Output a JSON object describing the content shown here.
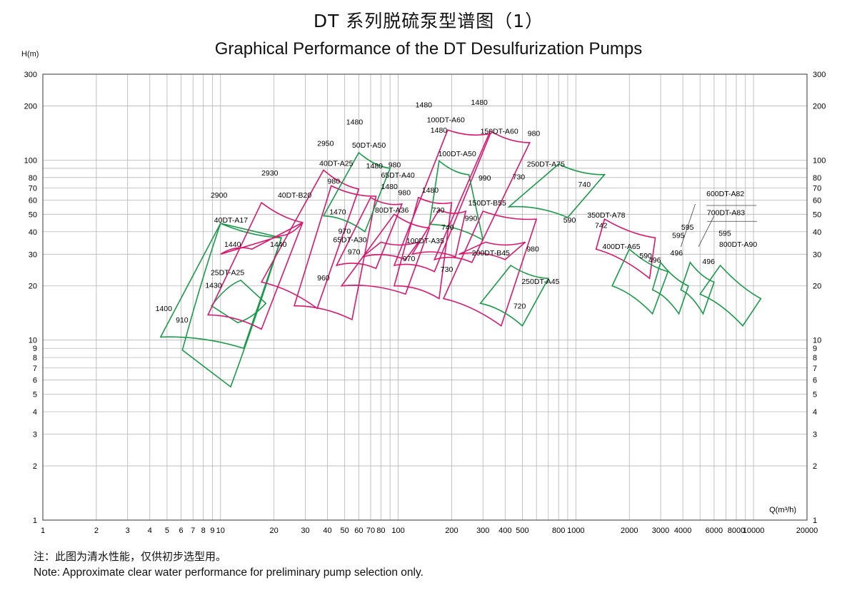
{
  "title_cn": "DT 系列脱硫泵型谱图（1）",
  "title_en": "Graphical Performance of the DT Desulfurization Pumps",
  "note_cn": "注：此图为清水性能，仅供初步选型用。",
  "note_en": "Note: Approximate clear water performance for preliminary pump selection only.",
  "colors": {
    "green": "#1a9a4a",
    "magenta": "#d8186e",
    "grid": "#b4b4b4",
    "axis": "#555555"
  },
  "chart_data": {
    "type": "scatter",
    "title": "Graphical Performance of the DT Desulfurization Pumps",
    "xlabel": "Q(m³/h)",
    "ylabel": "H(m)",
    "xscale": "log",
    "yscale": "log",
    "xlim": [
      1,
      20000
    ],
    "ylim": [
      1,
      300
    ],
    "grid": true,
    "x_ticks": [
      1,
      2,
      3,
      4,
      5,
      6,
      7,
      8,
      9,
      10,
      20,
      30,
      40,
      50,
      60,
      70,
      80,
      100,
      200,
      300,
      400,
      500,
      800,
      1000,
      2000,
      3000,
      4000,
      6000,
      8000,
      10000,
      20000
    ],
    "x_tick_labels": [
      "1",
      "2",
      "3",
      "4",
      "5",
      "6",
      "7",
      "8",
      "9",
      "10",
      "20",
      "30",
      "40",
      "50",
      "60",
      "70",
      "80",
      "100",
      "200",
      "300",
      "400",
      "500",
      "800",
      "1000",
      "2000",
      "3000",
      "4000",
      "6000",
      "8000",
      "10000",
      "20000"
    ],
    "y_ticks": [
      1,
      2,
      3,
      4,
      5,
      6,
      7,
      8,
      9,
      10,
      20,
      30,
      40,
      50,
      60,
      70,
      80,
      100,
      200,
      300
    ],
    "y_tick_labels": [
      "1",
      "2",
      "3",
      "4",
      "5",
      "6",
      "7",
      "8",
      "9",
      "10",
      "20",
      "30",
      "40",
      "50",
      "60",
      "70",
      "80",
      "100",
      "200",
      "300"
    ],
    "regions": [
      {
        "color": "green",
        "top": [
          [
            4.5,
            10.4
          ],
          [
            9,
            10
          ],
          [
            14,
            9
          ]
        ],
        "bottom": [
          [
            6,
            8.8
          ],
          [
            11,
            7.5
          ],
          [
            11.5,
            5.5
          ]
        ],
        "top_right": [
          20,
          33
        ],
        "bottom_right": [
          11.5,
          5.5
        ]
      },
      {
        "color": "green",
        "top": [
          [
            10,
            45
          ],
          [
            16,
            43
          ],
          [
            22,
            37
          ]
        ],
        "bottom": [
          [
            6,
            8.8
          ],
          [
            11,
            7.5
          ],
          [
            11.5,
            5.5
          ]
        ],
        "custom": "a17"
      },
      {
        "color": "green",
        "top": [
          [
            9,
            20
          ],
          [
            13,
            21.5
          ],
          [
            17,
            17
          ]
        ],
        "bottom": [
          [
            6,
            8.8
          ],
          [
            11,
            7.5
          ],
          [
            11.5,
            5.5
          ]
        ],
        "custom": "a25g"
      },
      {
        "color": "magenta",
        "top": [
          [
            8.5,
            14
          ],
          [
            12,
            14
          ],
          [
            17,
            11.5
          ]
        ],
        "bottom": [
          [
            17,
            58
          ],
          [
            24,
            56
          ],
          [
            29,
            45
          ]
        ],
        "custom": "b20"
      },
      {
        "color": "green",
        "top": [
          [
            38,
            49
          ],
          [
            50,
            49
          ],
          [
            65,
            40
          ]
        ],
        "bottom": [
          [
            60,
            110
          ],
          [
            75,
            108
          ],
          [
            90,
            90
          ]
        ],
        "custom": "a50"
      },
      {
        "color": "magenta",
        "top": [
          [
            26,
            16
          ],
          [
            40,
            15
          ],
          [
            55,
            13
          ]
        ],
        "bottom": [
          [
            38,
            88
          ],
          [
            48,
            85
          ],
          [
            60,
            69
          ]
        ],
        "custom": "a25m"
      }
    ],
    "labels": [
      {
        "text": "40DT-A17",
        "x": 9.2,
        "y": 45
      },
      {
        "text": "1440",
        "x": 10.5,
        "y": 33
      },
      {
        "text": "25DT-A25",
        "x": 8.8,
        "y": 23
      },
      {
        "text": "1430",
        "x": 8.2,
        "y": 19.5
      },
      {
        "text": "1400",
        "x": 4.3,
        "y": 14.5
      },
      {
        "text": "910",
        "x": 5.6,
        "y": 12.5
      },
      {
        "text": "2900",
        "x": 8.8,
        "y": 62
      },
      {
        "text": "2930",
        "x": 17,
        "y": 82
      },
      {
        "text": "40DT-B20",
        "x": 21,
        "y": 62
      },
      {
        "text": "1440",
        "x": 19,
        "y": 33
      },
      {
        "text": "2950",
        "x": 35,
        "y": 120
      },
      {
        "text": "40DT-A25",
        "x": 36,
        "y": 93
      },
      {
        "text": "980",
        "x": 40,
        "y": 74
      },
      {
        "text": "1470",
        "x": 41,
        "y": 50
      },
      {
        "text": "960",
        "x": 35,
        "y": 21.5
      },
      {
        "text": "1480",
        "x": 51,
        "y": 158
      },
      {
        "text": "50DT-A50",
        "x": 55,
        "y": 117
      },
      {
        "text": "1480",
        "x": 66,
        "y": 90
      },
      {
        "text": "980",
        "x": 88,
        "y": 91
      },
      {
        "text": "65DT-A40",
        "x": 80,
        "y": 80
      },
      {
        "text": "1480",
        "x": 80,
        "y": 69
      },
      {
        "text": "980",
        "x": 100,
        "y": 64
      },
      {
        "text": "970",
        "x": 46,
        "y": 39
      },
      {
        "text": "65DT-A30",
        "x": 43,
        "y": 35
      },
      {
        "text": "970",
        "x": 52,
        "y": 30
      },
      {
        "text": "80DT-A36",
        "x": 74,
        "y": 51
      },
      {
        "text": "1480",
        "x": 125,
        "y": 196
      },
      {
        "text": "1480",
        "x": 257,
        "y": 203
      },
      {
        "text": "100DT-A60",
        "x": 145,
        "y": 162
      },
      {
        "text": "1480",
        "x": 152,
        "y": 142
      },
      {
        "text": "150DT-A60",
        "x": 290,
        "y": 140
      },
      {
        "text": "980",
        "x": 535,
        "y": 136
      },
      {
        "text": "100DT-A50",
        "x": 168,
        "y": 105
      },
      {
        "text": "990",
        "x": 283,
        "y": 77
      },
      {
        "text": "730",
        "x": 440,
        "y": 78
      },
      {
        "text": "1480",
        "x": 136,
        "y": 66
      },
      {
        "text": "150DT-B55",
        "x": 248,
        "y": 56
      },
      {
        "text": "730",
        "x": 155,
        "y": 51
      },
      {
        "text": "990",
        "x": 237,
        "y": 46
      },
      {
        "text": "740",
        "x": 175,
        "y": 41
      },
      {
        "text": "100DT-A35",
        "x": 111,
        "y": 34.5
      },
      {
        "text": "970",
        "x": 106,
        "y": 27.5
      },
      {
        "text": "200DT-B45",
        "x": 260,
        "y": 29.5
      },
      {
        "text": "980",
        "x": 528,
        "y": 31
      },
      {
        "text": "730",
        "x": 173,
        "y": 24
      },
      {
        "text": "250DT-A45",
        "x": 495,
        "y": 20.5
      },
      {
        "text": "720",
        "x": 445,
        "y": 15
      },
      {
        "text": "250DT-A75",
        "x": 530,
        "y": 92
      },
      {
        "text": "740",
        "x": 1030,
        "y": 71
      },
      {
        "text": "590",
        "x": 850,
        "y": 45
      },
      {
        "text": "350DT-A78",
        "x": 1160,
        "y": 48
      },
      {
        "text": "742",
        "x": 1280,
        "y": 42
      },
      {
        "text": "400DT-A65",
        "x": 1410,
        "y": 32
      },
      {
        "text": "590",
        "x": 2280,
        "y": 28.5
      },
      {
        "text": "496",
        "x": 2560,
        "y": 27
      },
      {
        "text": "595",
        "x": 3480,
        "y": 37
      },
      {
        "text": "595",
        "x": 3920,
        "y": 41
      },
      {
        "text": "496",
        "x": 3400,
        "y": 29.5
      },
      {
        "text": "600DT-A82",
        "x": 5430,
        "y": 63
      },
      {
        "text": "700DT-A83",
        "x": 5470,
        "y": 49.5
      },
      {
        "text": "595",
        "x": 6360,
        "y": 38
      },
      {
        "text": "800DT-A90",
        "x": 6410,
        "y": 33
      },
      {
        "text": "496",
        "x": 5150,
        "y": 26.5
      }
    ]
  }
}
